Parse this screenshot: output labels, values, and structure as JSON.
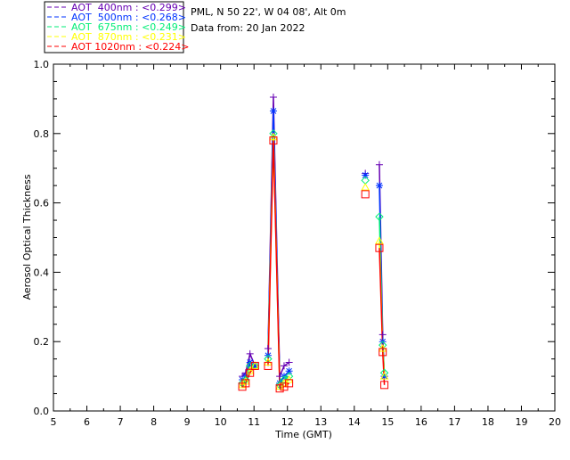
{
  "chart_data": {
    "type": "line",
    "title_lines": [
      "PML, N 50 22', W 04 08', Alt 0m",
      "Data from: 20 Jan 2022"
    ],
    "xlabel": "Time (GMT)",
    "ylabel": "Aerosol Optical Thickness",
    "xlim": [
      5,
      20
    ],
    "ylim": [
      0,
      1.0
    ],
    "xticks": [
      "5",
      "6",
      "7",
      "8",
      "9",
      "10",
      "11",
      "12",
      "13",
      "14",
      "15",
      "16",
      "17",
      "18",
      "19",
      "20"
    ],
    "yticks": [
      "0.0",
      "0.2",
      "0.4",
      "0.6",
      "0.8",
      "1.0"
    ],
    "legend_placement": "top-left, outside plot",
    "x": [
      10.65,
      10.75,
      10.88,
      11.03,
      11.42,
      11.58,
      11.77,
      11.9,
      12.05,
      14.33,
      14.75,
      14.85,
      14.9
    ],
    "series": [
      {
        "name": "AOT  400nm : <0.299>",
        "color": "#6600b3",
        "marker": "plus",
        "values": [
          0.1,
          0.11,
          0.165,
          0.13,
          0.18,
          0.905,
          0.1,
          0.13,
          0.14,
          0.685,
          0.71,
          0.22,
          0.1
        ]
      },
      {
        "name": "AOT  500nm : <0.268>",
        "color": "#0033ff",
        "marker": "asterisk",
        "values": [
          0.09,
          0.1,
          0.14,
          0.13,
          0.16,
          0.865,
          0.08,
          0.1,
          0.115,
          0.68,
          0.65,
          0.2,
          0.1
        ]
      },
      {
        "name": "AOT  675nm : <0.249>",
        "color": "#00ee77",
        "marker": "diamond",
        "values": [
          0.08,
          0.09,
          0.13,
          0.13,
          0.15,
          0.8,
          0.075,
          0.09,
          0.1,
          0.665,
          0.56,
          0.19,
          0.11
        ]
      },
      {
        "name": "AOT  870nm : <0.231>",
        "color": "#ffff00",
        "marker": "triangle",
        "values": [
          0.075,
          0.085,
          0.115,
          0.13,
          0.14,
          0.79,
          0.07,
          0.08,
          0.09,
          0.645,
          0.49,
          0.18,
          0.1
        ]
      },
      {
        "name": "AOT 1020nm : <0.224>",
        "color": "#ff0000",
        "marker": "square",
        "values": [
          0.07,
          0.08,
          0.11,
          0.13,
          0.13,
          0.78,
          0.065,
          0.07,
          0.08,
          0.625,
          0.47,
          0.17,
          0.075
        ]
      }
    ]
  }
}
